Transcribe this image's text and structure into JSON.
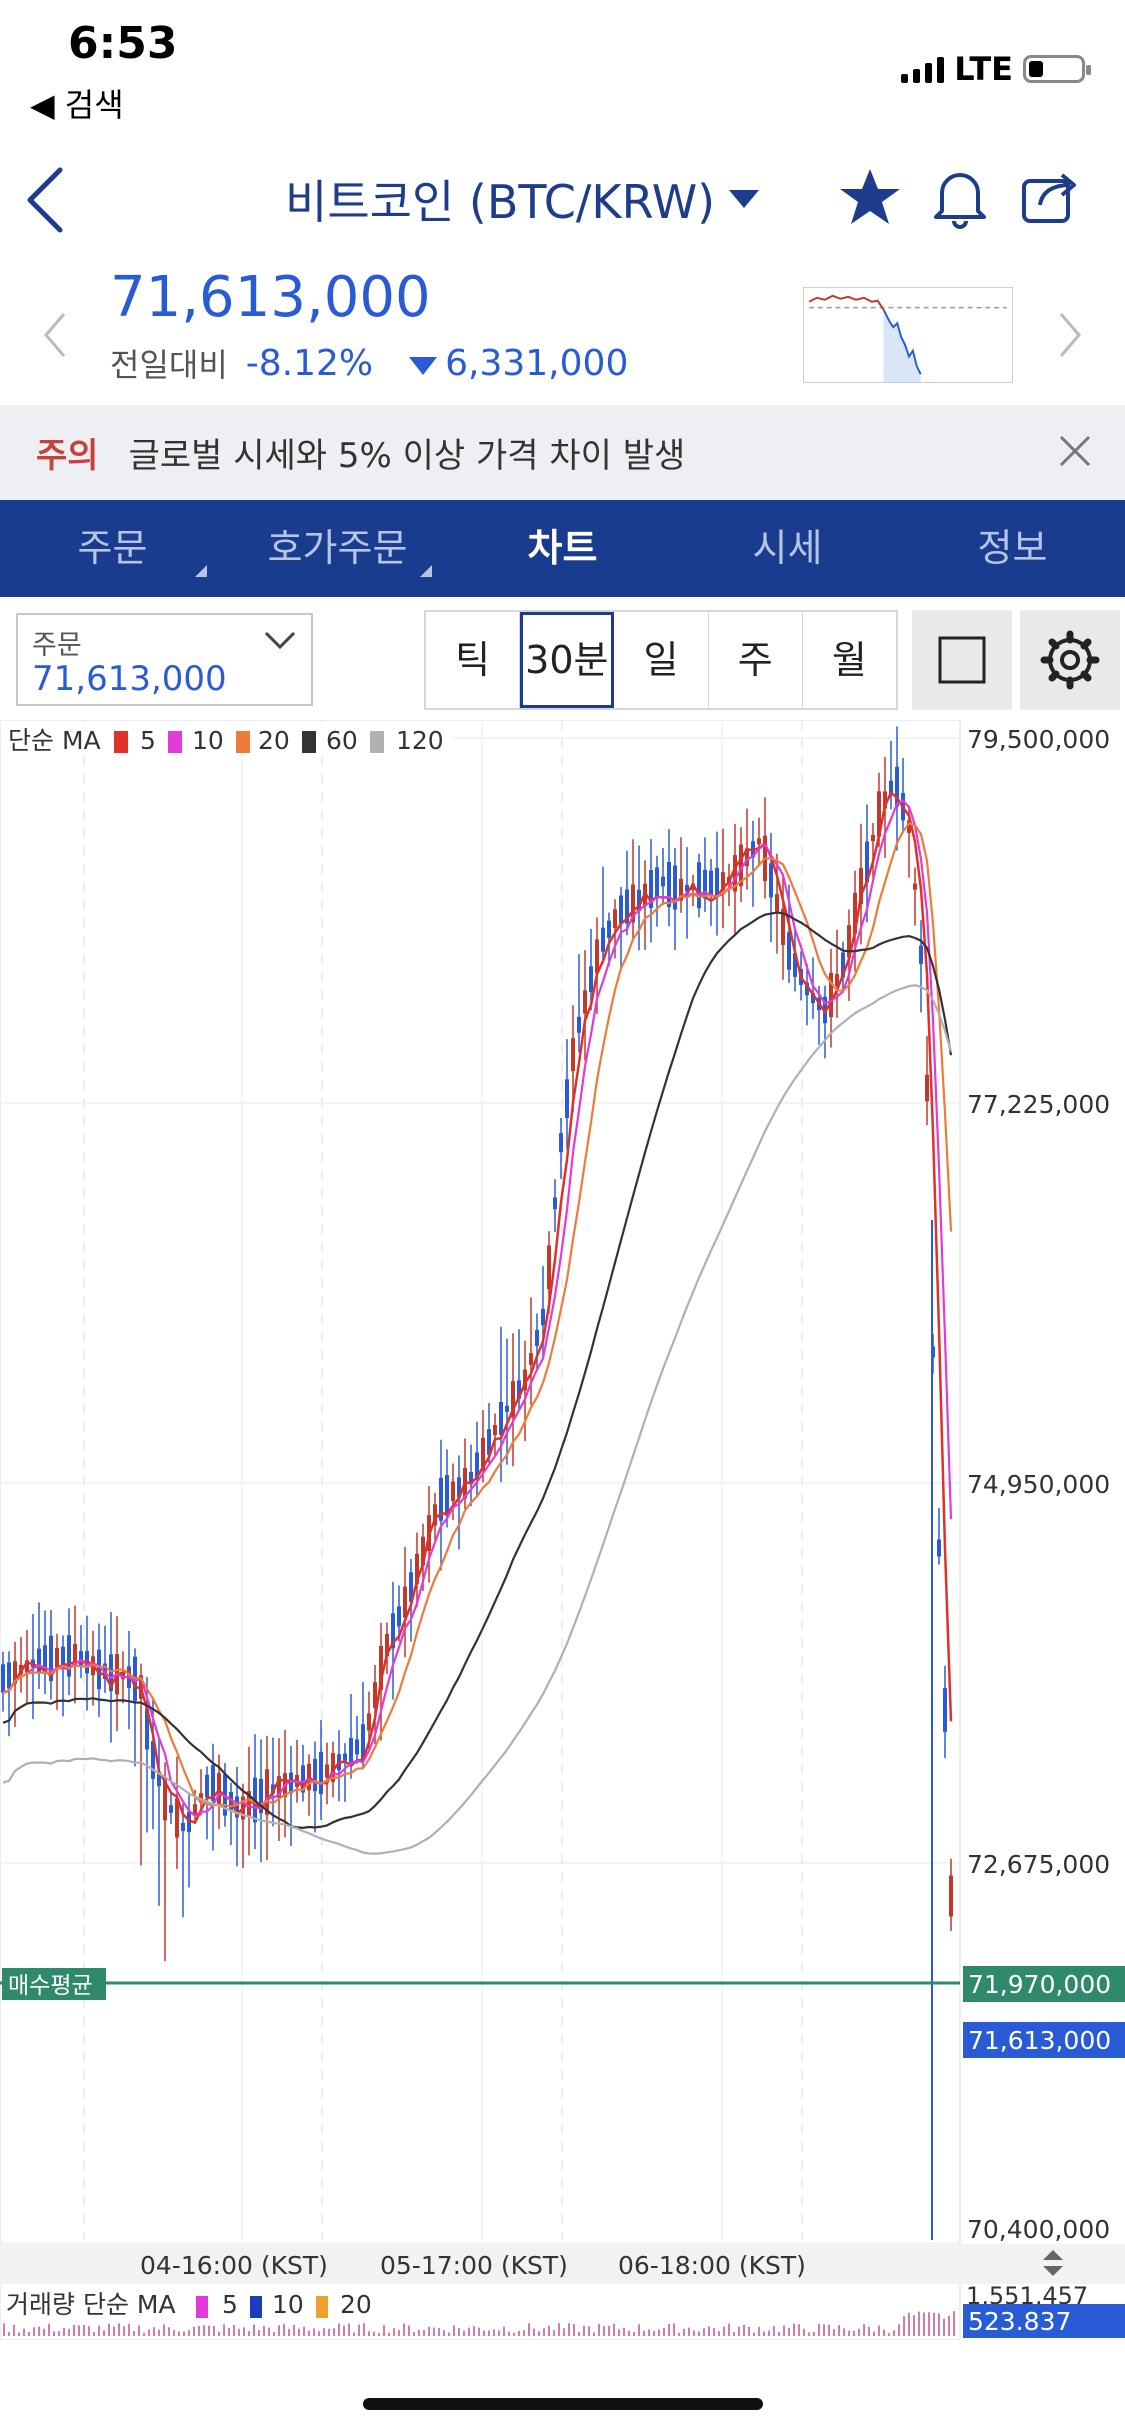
{
  "status_bar": {
    "time": "6:53",
    "back_label": "◀ 검색",
    "network": "LTE"
  },
  "header": {
    "title": "비트코인 (BTC/KRW)"
  },
  "price": {
    "current": "71,613,000",
    "change_label": "전일대비",
    "change_pct": "-8.12%",
    "change_amount": "6,331,000"
  },
  "notice": {
    "tag": "주의",
    "text": "글로벌 시세와 5% 이상 가격 차이 발생"
  },
  "tabs": [
    {
      "label": "주문"
    },
    {
      "label": "호가주문"
    },
    {
      "label": "차트"
    },
    {
      "label": "시세"
    },
    {
      "label": "정보"
    }
  ],
  "order": {
    "label": "주문",
    "value": "71,613,000"
  },
  "periods": [
    {
      "label": "틱"
    },
    {
      "label": "30분"
    },
    {
      "label": "일"
    },
    {
      "label": "주"
    },
    {
      "label": "월"
    }
  ],
  "chart": {
    "ma_legend": {
      "title": "단순 MA",
      "items": [
        {
          "label": "5",
          "color": "#e0302a"
        },
        {
          "label": "10",
          "color": "#e03ad8"
        },
        {
          "label": "20",
          "color": "#f07a3a"
        },
        {
          "label": "60",
          "color": "#333333"
        },
        {
          "label": "120",
          "color": "#b0b0b0"
        }
      ]
    },
    "y_ticks": [
      "79,500,000",
      "77,225,000",
      "74,950,000",
      "72,675,000",
      "70,400,000"
    ],
    "avg_buy": {
      "label": "매수평균",
      "value": "71,970,000"
    },
    "current_tag": "71,613,000",
    "x_ticks": [
      "04-16:00 (KST)",
      "05-17:00 (KST)",
      "06-18:00 (KST)"
    ],
    "volume_legend": {
      "title": "거래량 단순 MA",
      "items": [
        {
          "label": "5",
          "color": "#e03ad8"
        },
        {
          "label": "10",
          "color": "#1a3cc0"
        },
        {
          "label": "20",
          "color": "#f0a030"
        }
      ]
    },
    "volume_max": "1,551,457",
    "volume_current": "523.837"
  }
}
